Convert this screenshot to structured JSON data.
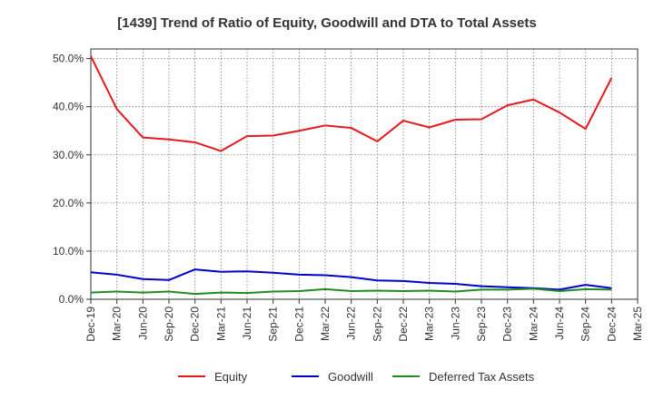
{
  "chart_data": {
    "type": "line",
    "title": "[1439]  Trend of Ratio of Equity, Goodwill and DTA to Total Assets",
    "xlabel": "",
    "ylabel": "",
    "ylim": [
      0,
      52
    ],
    "y_ticks": [
      0,
      10,
      20,
      30,
      40,
      50
    ],
    "y_tick_labels": [
      "0.0%",
      "10.0%",
      "20.0%",
      "30.0%",
      "40.0%",
      "50.0%"
    ],
    "categories": [
      "Dec-19",
      "Mar-20",
      "Jun-20",
      "Sep-20",
      "Dec-20",
      "Mar-21",
      "Jun-21",
      "Sep-21",
      "Dec-21",
      "Mar-22",
      "Jun-22",
      "Sep-22",
      "Dec-22",
      "Mar-23",
      "Jun-23",
      "Sep-23",
      "Dec-23",
      "Mar-24",
      "Jun-24",
      "Sep-24",
      "Dec-24",
      "Mar-25"
    ],
    "grid": true,
    "legend_position": "bottom",
    "series": [
      {
        "name": "Equity",
        "color": "#e41a1c",
        "values": [
          50.5,
          39.5,
          33.6,
          33.2,
          32.6,
          30.8,
          33.9,
          34.0,
          35.0,
          36.1,
          35.6,
          32.8,
          37.1,
          35.7,
          37.3,
          37.4,
          40.3,
          41.5,
          38.8,
          35.4,
          46.0,
          null
        ]
      },
      {
        "name": "Goodwill",
        "color": "#0000cc",
        "values": [
          5.6,
          5.1,
          4.2,
          4.0,
          6.2,
          5.7,
          5.8,
          5.5,
          5.1,
          5.0,
          4.6,
          3.9,
          3.8,
          3.4,
          3.2,
          2.7,
          2.5,
          2.3,
          2.0,
          3.0,
          2.3,
          null
        ]
      },
      {
        "name": "Deferred Tax Assets",
        "color": "#228b22",
        "values": [
          1.4,
          1.6,
          1.4,
          1.6,
          1.1,
          1.4,
          1.3,
          1.6,
          1.7,
          2.1,
          1.7,
          1.8,
          1.7,
          1.8,
          1.6,
          2.0,
          2.0,
          2.2,
          1.7,
          2.1,
          2.0,
          null
        ]
      }
    ]
  }
}
